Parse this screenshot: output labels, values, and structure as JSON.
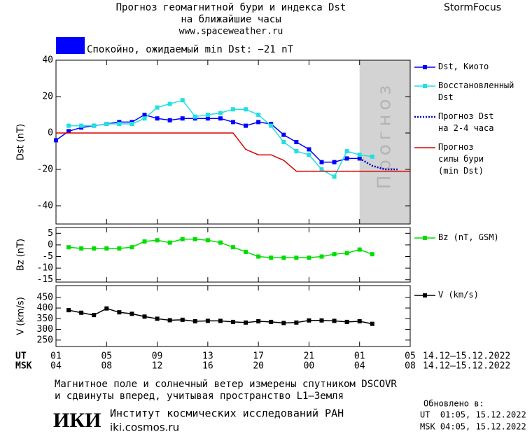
{
  "header": {
    "title": "Прогноз геомагнитной бури и индекса Dst",
    "subtitle": "на ближайшие часы",
    "site": "www.spaceweather.ru",
    "brand": "StormFocus"
  },
  "status": {
    "color": "#0000ff",
    "text": "Спокойно, ожидаемый min Dst: −21 nT"
  },
  "x_axis": {
    "xlim": [
      0,
      28
    ],
    "xticks": [
      {
        "value": 0,
        "label": "01"
      },
      {
        "value": 4,
        "label": "05"
      },
      {
        "value": 8,
        "label": "09"
      },
      {
        "value": 12,
        "label": "13"
      },
      {
        "value": 16,
        "label": "17"
      },
      {
        "value": 20,
        "label": "21"
      },
      {
        "value": 24,
        "label": "01"
      },
      {
        "value": 28,
        "label": "05"
      }
    ],
    "msk_labels": [
      "04",
      "08",
      "12",
      "16",
      "20",
      "00",
      "04",
      "08"
    ],
    "ut_label": "UT",
    "msk_label": "MSK",
    "date_range": "14.12–15.12.2022"
  },
  "chart_data": [
    {
      "type": "line",
      "ylabel": "Dst (nT)",
      "ylim": [
        -50,
        40
      ],
      "yticks": [
        40,
        20,
        0,
        -20,
        -40
      ],
      "forecast_region": {
        "x": [
          24,
          28
        ],
        "label": "Прогноз",
        "color": "#d3d3d3"
      },
      "series": [
        {
          "name": "Dst, Киото",
          "color": "#0000ff",
          "marker": "square",
          "dash": false,
          "x": [
            0,
            1,
            2,
            3,
            4,
            5,
            6,
            7,
            8,
            9,
            10,
            11,
            12,
            13,
            14,
            15,
            16,
            17,
            18,
            19,
            20,
            21,
            22,
            23,
            24
          ],
          "values": [
            -4,
            1,
            3,
            4,
            5,
            6,
            6,
            10,
            8,
            7,
            8,
            8,
            8,
            8,
            6,
            4,
            6,
            5,
            -1,
            -5,
            -9,
            -16,
            -16,
            -14,
            -14
          ]
        },
        {
          "name": "Восстановленный\nDst",
          "color": "#22e0e0",
          "marker": "square",
          "dash": false,
          "x": [
            1,
            2,
            3,
            4,
            5,
            6,
            7,
            8,
            9,
            10,
            11,
            12,
            13,
            14,
            15,
            16,
            17,
            18,
            19,
            20,
            21,
            22,
            23,
            24,
            25
          ],
          "values": [
            4,
            4,
            4,
            5,
            5,
            5,
            8,
            14,
            16,
            18,
            9,
            10,
            11,
            13,
            13,
            10,
            4,
            -5,
            -10,
            -12,
            -20,
            -24,
            -10,
            -12,
            -13
          ]
        },
        {
          "name": "Прогноз Dst\nна 2-4 часа",
          "color": "#0000cc",
          "marker": null,
          "dash": true,
          "x": [
            24,
            25,
            26,
            27
          ],
          "values": [
            -14,
            -18,
            -20,
            -20
          ]
        },
        {
          "name": "Прогноз\nсилы бури\n(min Dst)",
          "color": "#dd0000",
          "marker": null,
          "dash": false,
          "x": [
            0,
            14,
            15,
            16,
            17,
            18,
            19,
            28
          ],
          "values": [
            0,
            0,
            -9,
            -12,
            -12,
            -15,
            -21,
            -21
          ]
        }
      ]
    },
    {
      "type": "line",
      "ylabel": "Bz (nT)",
      "ylim": [
        -16,
        7.5
      ],
      "yticks": [
        5,
        0,
        -5,
        -10,
        -15
      ],
      "series": [
        {
          "name": "Bz (nT, GSM)",
          "color": "#00dd00",
          "marker": "square",
          "dash": false,
          "x": [
            1,
            2,
            3,
            4,
            5,
            6,
            7,
            8,
            9,
            10,
            11,
            12,
            13,
            14,
            15,
            16,
            17,
            18,
            19,
            20,
            21,
            22,
            23,
            24,
            25
          ],
          "values": [
            -1,
            -1.5,
            -1.5,
            -1.5,
            -1.5,
            -1,
            1.5,
            2,
            1,
            2.5,
            2.5,
            2,
            1,
            -1,
            -3,
            -5,
            -5.5,
            -5.5,
            -5.5,
            -5.5,
            -5,
            -4,
            -3.5,
            -2,
            -4
          ]
        }
      ]
    },
    {
      "type": "line",
      "ylabel": "V (km/s)",
      "ylim": [
        220,
        505
      ],
      "yticks": [
        450,
        400,
        350,
        300,
        250
      ],
      "series": [
        {
          "name": "V (km/s)",
          "color": "#000000",
          "marker": "square",
          "dash": false,
          "x": [
            1,
            2,
            3,
            4,
            5,
            6,
            7,
            8,
            9,
            10,
            11,
            12,
            13,
            14,
            15,
            16,
            17,
            18,
            19,
            20,
            21,
            22,
            23,
            24,
            25
          ],
          "values": [
            390,
            378,
            367,
            398,
            380,
            373,
            360,
            350,
            343,
            345,
            338,
            340,
            340,
            335,
            332,
            338,
            335,
            330,
            332,
            342,
            342,
            340,
            335,
            338,
            326
          ]
        }
      ]
    }
  ],
  "footer": {
    "note_line1": "Магнитное поле и солнечный ветер измерены спутником DSCOVR",
    "note_line2": "и сдвинуты вперед, учитывая пространство L1–Земля",
    "updated": "Обновлено в:",
    "updated_ut": "UT  01:05, 15.12.2022",
    "updated_msk": "MSK 04:05, 15.12.2022",
    "logo": "ИКИ",
    "institute": "Институт космических исследований РАН",
    "institute_site": "iki.cosmos.ru"
  }
}
